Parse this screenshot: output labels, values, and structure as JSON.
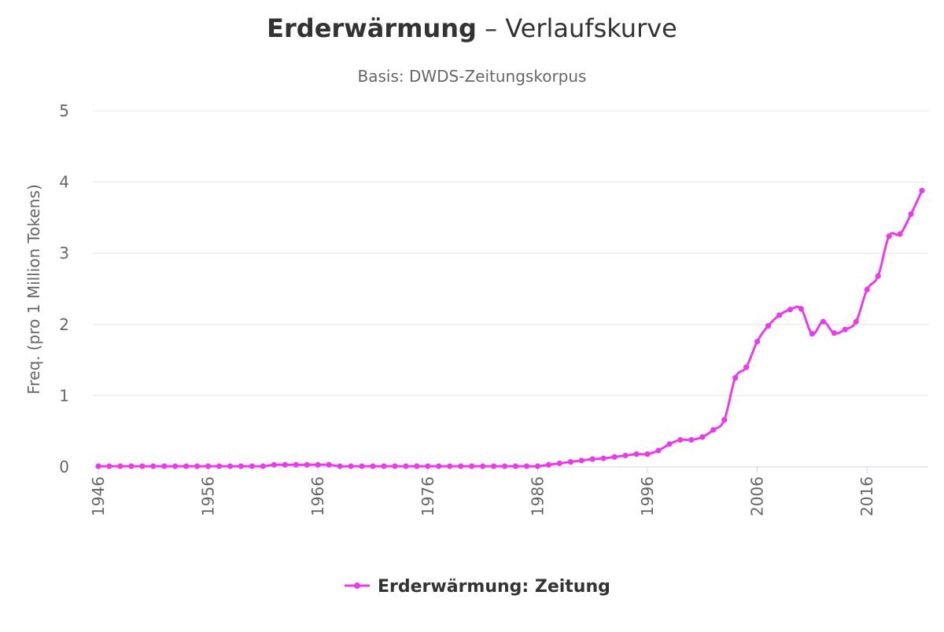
{
  "chart_data": {
    "type": "line",
    "title_bold": "Erderwärmung",
    "title_rest": " – Verlaufskurve",
    "subtitle": "Basis: DWDS-Zeitungskorpus",
    "ylabel": "Freq. (pro 1 Million Tokens)",
    "xlabel": "",
    "xlim": [
      1946,
      2021
    ],
    "ylim": [
      0,
      5
    ],
    "y_ticks": [
      0,
      1,
      2,
      3,
      4,
      5
    ],
    "x_ticks": [
      1946,
      1956,
      1966,
      1976,
      1986,
      1996,
      2006,
      2016
    ],
    "grid": "horizontal",
    "legend_position": "bottom-center",
    "color": "#e83ce8",
    "series": [
      {
        "name": "Erderwärmung: Zeitung",
        "x": [
          1946,
          1947,
          1948,
          1949,
          1950,
          1951,
          1952,
          1953,
          1954,
          1955,
          1956,
          1957,
          1958,
          1959,
          1960,
          1961,
          1962,
          1963,
          1964,
          1965,
          1966,
          1967,
          1968,
          1969,
          1970,
          1971,
          1972,
          1973,
          1974,
          1975,
          1976,
          1977,
          1978,
          1979,
          1980,
          1981,
          1982,
          1983,
          1984,
          1985,
          1986,
          1987,
          1988,
          1989,
          1990,
          1991,
          1992,
          1993,
          1994,
          1995,
          1996,
          1997,
          1998,
          1999,
          2000,
          2001,
          2002,
          2003,
          2004,
          2005,
          2006,
          2007,
          2008,
          2009,
          2010,
          2011,
          2012,
          2013,
          2014,
          2015,
          2016,
          2017,
          2018,
          2019,
          2020,
          2021
        ],
        "values": [
          0.01,
          0.01,
          0.01,
          0.01,
          0.01,
          0.01,
          0.01,
          0.01,
          0.01,
          0.01,
          0.01,
          0.01,
          0.01,
          0.01,
          0.01,
          0.01,
          0.03,
          0.03,
          0.03,
          0.03,
          0.03,
          0.03,
          0.01,
          0.01,
          0.01,
          0.01,
          0.01,
          0.01,
          0.01,
          0.01,
          0.01,
          0.01,
          0.01,
          0.01,
          0.01,
          0.01,
          0.01,
          0.01,
          0.01,
          0.01,
          0.01,
          0.03,
          0.05,
          0.07,
          0.09,
          0.11,
          0.12,
          0.14,
          0.16,
          0.18,
          0.18,
          0.23,
          0.32,
          0.38,
          0.38,
          0.42,
          0.52,
          0.66,
          1.25,
          1.4,
          1.76,
          1.98,
          2.13,
          2.21,
          2.22,
          1.87,
          2.04,
          1.88,
          1.93,
          2.04,
          2.49,
          2.68,
          3.24,
          3.27,
          3.55,
          3.88
        ]
      }
    ]
  }
}
